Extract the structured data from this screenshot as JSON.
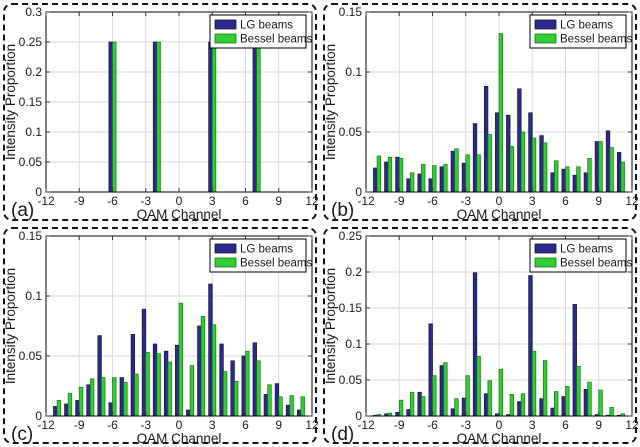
{
  "figure": {
    "description": "2x2 grid of grouped bar charts comparing intensity proportion per OAM channel for LG beams vs Bessel beams"
  },
  "colors": {
    "lg": "#2b2b86",
    "lg_edge": "#15153f",
    "bessel": "#33cc33",
    "bessel_edge": "#117a11",
    "grid": "#dadada",
    "axis_box": "#000000",
    "tick": "#333333",
    "text": "#1a1a1a",
    "legend_border": "#000000",
    "legend_bg": "#ffffff"
  },
  "legend": {
    "items": [
      {
        "label": "LG beams",
        "color_key": "lg"
      },
      {
        "label": "Bessel beams",
        "color_key": "bessel"
      }
    ],
    "position": "top-right"
  },
  "chart_data": [
    {
      "type": "bar",
      "panel_label": "(a)",
      "xlabel": "OAM Channel",
      "ylabel": "Intensity Proportion",
      "grid": true,
      "legend_position": "top-right",
      "xlim": [
        -12,
        12
      ],
      "ylim": [
        0,
        0.3
      ],
      "xticks": [
        -12,
        -9,
        -6,
        -3,
        0,
        3,
        6,
        9,
        12
      ],
      "ytick_labels": [
        "0",
        "0.05",
        "0.1",
        "0.15",
        "0.2",
        "0.25",
        "0.3"
      ],
      "ytick_values": [
        0,
        0.05,
        0.1,
        0.15,
        0.2,
        0.25,
        0.3
      ],
      "x": [
        -6,
        -2,
        3,
        7
      ],
      "series": [
        {
          "name": "LG beams",
          "values": [
            0.25,
            0.25,
            0.25,
            0.25
          ]
        },
        {
          "name": "Bessel beams",
          "values": [
            0.25,
            0.25,
            0.25,
            0.25
          ]
        }
      ]
    },
    {
      "type": "bar",
      "panel_label": "(b)",
      "xlabel": "OAM Channel",
      "ylabel": "Intensity Proportion",
      "grid": true,
      "legend_position": "top-right",
      "xlim": [
        -12,
        12
      ],
      "ylim": [
        0,
        0.15
      ],
      "xticks": [
        -12,
        -9,
        -6,
        -3,
        0,
        3,
        6,
        9,
        12
      ],
      "ytick_labels": [
        "0",
        "0.05",
        "0.1",
        "0.15"
      ],
      "ytick_values": [
        0,
        0.05,
        0.1,
        0.15
      ],
      "x": [
        -11,
        -10,
        -9,
        -8,
        -7,
        -6,
        -5,
        -4,
        -3,
        -2,
        -1,
        0,
        1,
        2,
        3,
        4,
        5,
        6,
        7,
        8,
        9,
        10,
        11
      ],
      "series": [
        {
          "name": "LG beams",
          "values": [
            0.02,
            0.025,
            0.029,
            0.011,
            0.015,
            0.011,
            0.021,
            0.034,
            0.024,
            0.057,
            0.088,
            0.066,
            0.064,
            0.086,
            0.066,
            0.047,
            0.016,
            0.019,
            0.014,
            0.016,
            0.042,
            0.051,
            0.033
          ]
        },
        {
          "name": "Bessel beams",
          "values": [
            0.03,
            0.029,
            0.028,
            0.016,
            0.023,
            0.022,
            0.023,
            0.036,
            0.031,
            0.031,
            0.048,
            0.132,
            0.038,
            0.05,
            0.045,
            0.041,
            0.026,
            0.021,
            0.021,
            0.028,
            0.042,
            0.037,
            0.025
          ]
        }
      ]
    },
    {
      "type": "bar",
      "panel_label": "(c)",
      "xlabel": "OAM Channel",
      "ylabel": "Intensity Proportion",
      "grid": true,
      "legend_position": "top-right",
      "xlim": [
        -12,
        12
      ],
      "ylim": [
        0,
        0.15
      ],
      "xticks": [
        -12,
        -9,
        -6,
        -3,
        0,
        3,
        6,
        9,
        12
      ],
      "ytick_labels": [
        "0",
        "0.05",
        "0.1",
        "0.15"
      ],
      "ytick_values": [
        0,
        0.05,
        0.1,
        0.15
      ],
      "x": [
        -11,
        -10,
        -9,
        -8,
        -7,
        -6,
        -5,
        -4,
        -3,
        -2,
        -1,
        0,
        1,
        2,
        3,
        4,
        5,
        6,
        7,
        8,
        9,
        10,
        11
      ],
      "series": [
        {
          "name": "LG beams",
          "values": [
            0.008,
            0.01,
            0.013,
            0.026,
            0.067,
            0.011,
            0.032,
            0.068,
            0.089,
            0.06,
            0.054,
            0.059,
            0.005,
            0.075,
            0.11,
            0.06,
            0.046,
            0.05,
            0.061,
            0.018,
            0.027,
            0.009,
            0.005
          ]
        },
        {
          "name": "Bessel beams",
          "values": [
            0.013,
            0.019,
            0.024,
            0.031,
            0.032,
            0.032,
            0.028,
            0.035,
            0.053,
            0.052,
            0.045,
            0.094,
            0.042,
            0.083,
            0.076,
            0.037,
            0.029,
            0.054,
            0.046,
            0.026,
            0.016,
            0.017,
            0.016
          ]
        }
      ]
    },
    {
      "type": "bar",
      "panel_label": "(d)",
      "xlabel": "OAM Channel",
      "ylabel": "Intensity Proportion",
      "grid": true,
      "legend_position": "top-right",
      "xlim": [
        -12,
        12
      ],
      "ylim": [
        0,
        0.25
      ],
      "xticks": [
        -12,
        -9,
        -6,
        -3,
        0,
        3,
        6,
        9,
        12
      ],
      "ytick_labels": [
        "0",
        "0.05",
        "0.1",
        "0.15",
        "0.2",
        "0.25"
      ],
      "ytick_values": [
        0,
        0.05,
        0.1,
        0.15,
        0.2,
        0.25
      ],
      "x": [
        -11,
        -10,
        -9,
        -8,
        -7,
        -6,
        -5,
        -4,
        -3,
        -2,
        -1,
        0,
        1,
        2,
        3,
        4,
        5,
        6,
        7,
        8,
        9,
        10,
        11
      ],
      "series": [
        {
          "name": "LG beams",
          "values": [
            0.001,
            0.003,
            0.005,
            0.009,
            0.033,
            0.128,
            0.07,
            0.01,
            0.025,
            0.199,
            0.031,
            0.003,
            0.002,
            0.02,
            0.195,
            0.024,
            0.011,
            0.027,
            0.155,
            0.037,
            0.002,
            0.001,
            0.001
          ]
        },
        {
          "name": "Bessel beams",
          "values": [
            0.002,
            0.004,
            0.022,
            0.033,
            0.027,
            0.056,
            0.074,
            0.024,
            0.056,
            0.083,
            0.049,
            0.065,
            0.03,
            0.031,
            0.09,
            0.077,
            0.034,
            0.041,
            0.069,
            0.047,
            0.036,
            0.012,
            0.003
          ]
        }
      ]
    }
  ]
}
